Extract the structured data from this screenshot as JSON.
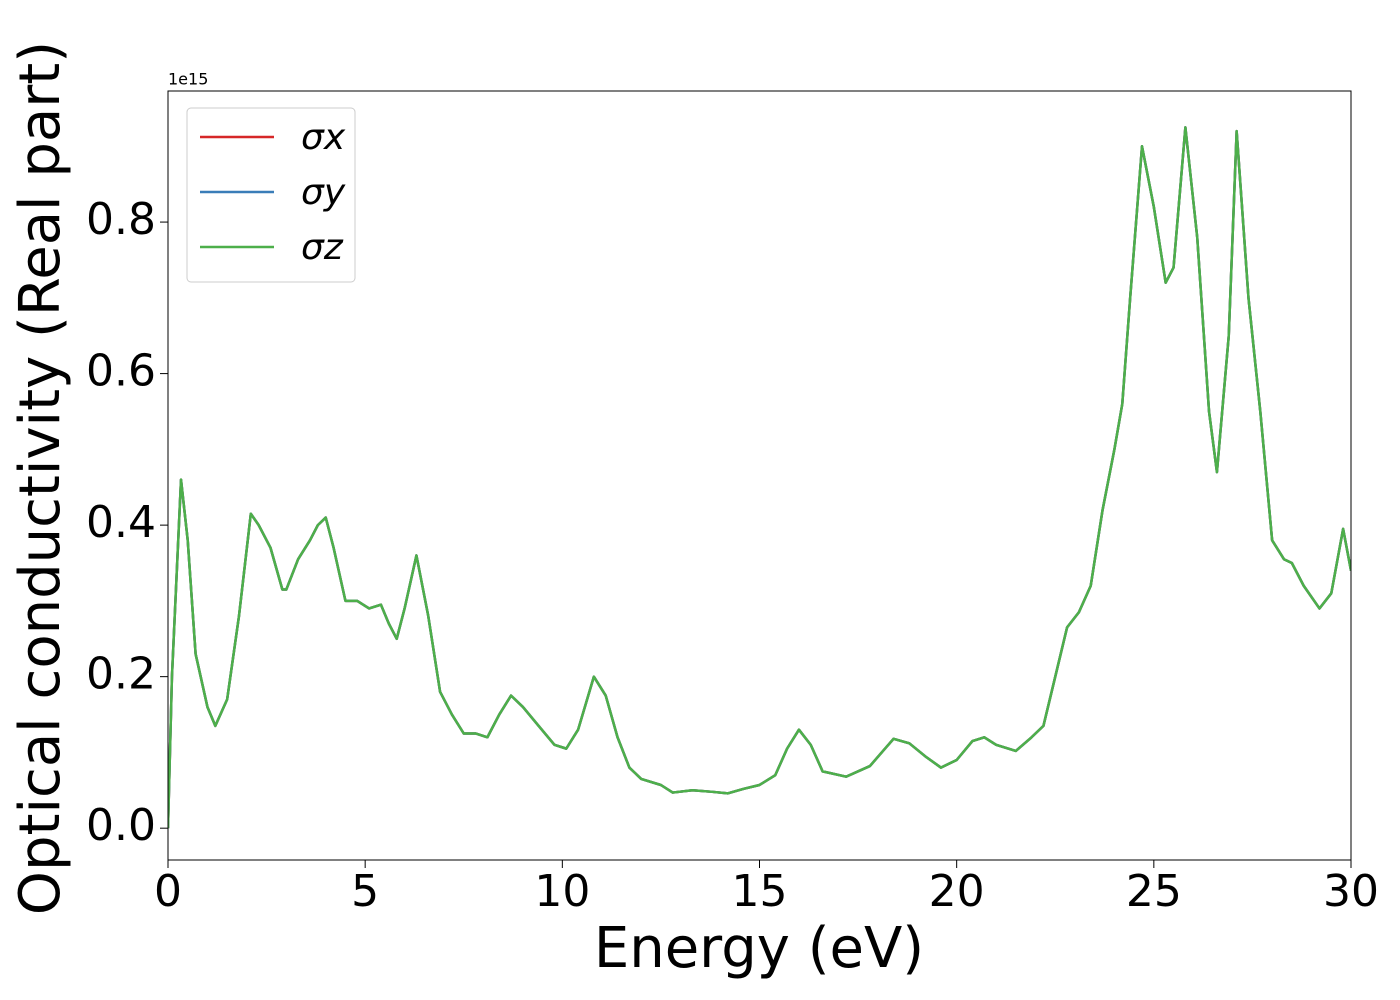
{
  "chart_data": {
    "type": "line",
    "xlabel": "Energy (eV)",
    "ylabel": "Optical conductivity (Real part)",
    "y_offset_label": "1e15",
    "x": [
      0,
      0.1,
      0.33,
      0.5,
      0.7,
      1.0,
      1.2,
      1.5,
      1.8,
      2.1,
      2.3,
      2.6,
      2.9,
      3.0,
      3.3,
      3.6,
      3.8,
      4.0,
      4.2,
      4.5,
      4.8,
      5.1,
      5.4,
      5.6,
      5.8,
      6.0,
      6.3,
      6.6,
      6.9,
      7.2,
      7.5,
      7.8,
      8.1,
      8.4,
      8.7,
      9.0,
      9.4,
      9.8,
      10.1,
      10.4,
      10.8,
      11.1,
      11.4,
      11.7,
      12.0,
      12.5,
      12.8,
      13.3,
      13.8,
      14.2,
      14.6,
      15.0,
      15.4,
      15.7,
      16.0,
      16.3,
      16.6,
      17.2,
      17.8,
      18.4,
      18.8,
      19.2,
      19.6,
      20.0,
      20.4,
      20.7,
      21.0,
      21.5,
      21.9,
      22.2,
      22.5,
      22.8,
      23.1,
      23.4,
      23.7,
      24.0,
      24.2,
      24.4,
      24.7,
      25.0,
      25.3,
      25.5,
      25.8,
      26.1,
      26.4,
      26.6,
      26.9,
      27.1,
      27.4,
      27.7,
      28.0,
      28.3,
      28.5,
      28.8,
      29.2,
      29.5,
      29.8,
      30.0
    ],
    "series": [
      {
        "name": "σx",
        "color": "#d62728",
        "values": [
          0,
          0.2,
          0.46,
          0.38,
          0.23,
          0.16,
          0.135,
          0.17,
          0.28,
          0.415,
          0.4,
          0.37,
          0.315,
          0.315,
          0.355,
          0.38,
          0.4,
          0.41,
          0.37,
          0.3,
          0.3,
          0.29,
          0.295,
          0.27,
          0.25,
          0.29,
          0.36,
          0.28,
          0.18,
          0.15,
          0.125,
          0.125,
          0.12,
          0.15,
          0.175,
          0.16,
          0.135,
          0.11,
          0.105,
          0.13,
          0.2,
          0.175,
          0.12,
          0.08,
          0.065,
          0.057,
          0.047,
          0.05,
          0.048,
          0.046,
          0.052,
          0.057,
          0.07,
          0.105,
          0.13,
          0.11,
          0.075,
          0.068,
          0.082,
          0.118,
          0.112,
          0.095,
          0.08,
          0.09,
          0.115,
          0.12,
          0.11,
          0.102,
          0.12,
          0.135,
          0.2,
          0.265,
          0.285,
          0.32,
          0.42,
          0.5,
          0.56,
          0.7,
          0.9,
          0.82,
          0.72,
          0.74,
          0.925,
          0.78,
          0.55,
          0.47,
          0.65,
          0.92,
          0.7,
          0.55,
          0.38,
          0.355,
          0.35,
          0.32,
          0.29,
          0.31,
          0.395,
          0.34
        ]
      },
      {
        "name": "σy",
        "color": "#3a7db8",
        "values": [
          0,
          0.2,
          0.46,
          0.38,
          0.23,
          0.16,
          0.135,
          0.17,
          0.28,
          0.415,
          0.4,
          0.37,
          0.315,
          0.315,
          0.355,
          0.38,
          0.4,
          0.41,
          0.37,
          0.3,
          0.3,
          0.29,
          0.295,
          0.27,
          0.25,
          0.29,
          0.36,
          0.28,
          0.18,
          0.15,
          0.125,
          0.125,
          0.12,
          0.15,
          0.175,
          0.16,
          0.135,
          0.11,
          0.105,
          0.13,
          0.2,
          0.175,
          0.12,
          0.08,
          0.065,
          0.057,
          0.047,
          0.05,
          0.048,
          0.046,
          0.052,
          0.057,
          0.07,
          0.105,
          0.13,
          0.11,
          0.075,
          0.068,
          0.082,
          0.118,
          0.112,
          0.095,
          0.08,
          0.09,
          0.115,
          0.12,
          0.11,
          0.102,
          0.12,
          0.135,
          0.2,
          0.265,
          0.285,
          0.32,
          0.42,
          0.5,
          0.56,
          0.7,
          0.9,
          0.82,
          0.72,
          0.74,
          0.925,
          0.78,
          0.55,
          0.47,
          0.65,
          0.92,
          0.7,
          0.55,
          0.38,
          0.355,
          0.35,
          0.32,
          0.29,
          0.31,
          0.395,
          0.34
        ]
      },
      {
        "name": "σz",
        "color": "#4daf4a",
        "values": [
          0,
          0.2,
          0.46,
          0.38,
          0.23,
          0.16,
          0.135,
          0.17,
          0.28,
          0.415,
          0.4,
          0.37,
          0.315,
          0.315,
          0.355,
          0.38,
          0.4,
          0.41,
          0.37,
          0.3,
          0.3,
          0.29,
          0.295,
          0.27,
          0.25,
          0.29,
          0.36,
          0.28,
          0.18,
          0.15,
          0.125,
          0.125,
          0.12,
          0.15,
          0.175,
          0.16,
          0.135,
          0.11,
          0.105,
          0.13,
          0.2,
          0.175,
          0.12,
          0.08,
          0.065,
          0.057,
          0.047,
          0.05,
          0.048,
          0.046,
          0.052,
          0.057,
          0.07,
          0.105,
          0.13,
          0.11,
          0.075,
          0.068,
          0.082,
          0.118,
          0.112,
          0.095,
          0.08,
          0.09,
          0.115,
          0.12,
          0.11,
          0.102,
          0.12,
          0.135,
          0.2,
          0.265,
          0.285,
          0.32,
          0.42,
          0.5,
          0.56,
          0.7,
          0.9,
          0.82,
          0.72,
          0.74,
          0.925,
          0.78,
          0.55,
          0.47,
          0.65,
          0.92,
          0.7,
          0.55,
          0.38,
          0.355,
          0.35,
          0.32,
          0.29,
          0.31,
          0.395,
          0.34
        ]
      }
    ],
    "xlim": [
      0,
      30
    ],
    "xticks": [
      0,
      5,
      10,
      15,
      20,
      25,
      30
    ],
    "ylim": [
      -0.042,
      0.973
    ],
    "yticks": [
      {
        "value": 0,
        "label": "0.0"
      },
      0.2,
      0.4,
      0.6,
      0.8
    ],
    "grid": false,
    "legend": "upper left"
  }
}
